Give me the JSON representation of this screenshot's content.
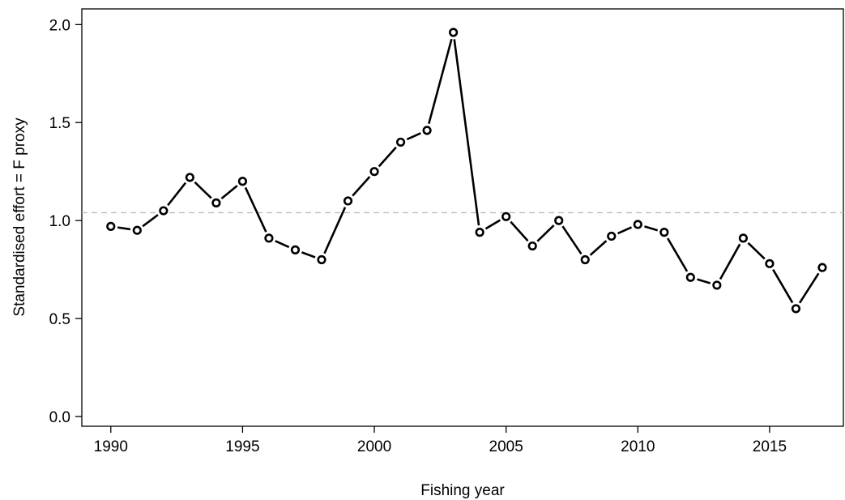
{
  "chart_data": {
    "type": "line",
    "title": "",
    "xlabel": "Fishing year",
    "ylabel": "Standardised effort = F proxy",
    "xlim": [
      1988.9,
      2017.8
    ],
    "ylim": [
      -0.05,
      2.08
    ],
    "x_ticks": [
      1990,
      1995,
      2000,
      2005,
      2010,
      2015
    ],
    "y_ticks": [
      0.0,
      0.5,
      1.0,
      1.5,
      2.0
    ],
    "x_tick_labels": [
      "1990",
      "1995",
      "2000",
      "2005",
      "2010",
      "2015"
    ],
    "y_tick_labels": [
      "0.0",
      "0.5",
      "1.0",
      "1.5",
      "2.0"
    ],
    "grid": false,
    "reference_line": {
      "y": 1.04,
      "style": "dashed",
      "color": "#bdbdbd"
    },
    "series": [
      {
        "color": "#000000",
        "marker": "open-circle",
        "line": "dashed-black",
        "x": [
          1990,
          1991,
          1992,
          1993,
          1994,
          1995,
          1996,
          1997,
          1998,
          1999,
          2000,
          2001,
          2002,
          2003,
          2004,
          2005,
          2006,
          2007,
          2008,
          2009,
          2010,
          2011,
          2012,
          2013,
          2014,
          2015,
          2016,
          2017
        ],
        "values": [
          0.97,
          0.95,
          1.05,
          1.22,
          1.09,
          1.2,
          0.91,
          0.85,
          0.8,
          1.1,
          1.25,
          1.4,
          1.46,
          1.96,
          0.94,
          1.02,
          0.87,
          1.0,
          0.8,
          0.92,
          0.98,
          0.94,
          0.71,
          0.67,
          0.91,
          0.78,
          0.55,
          0.76
        ]
      }
    ]
  }
}
